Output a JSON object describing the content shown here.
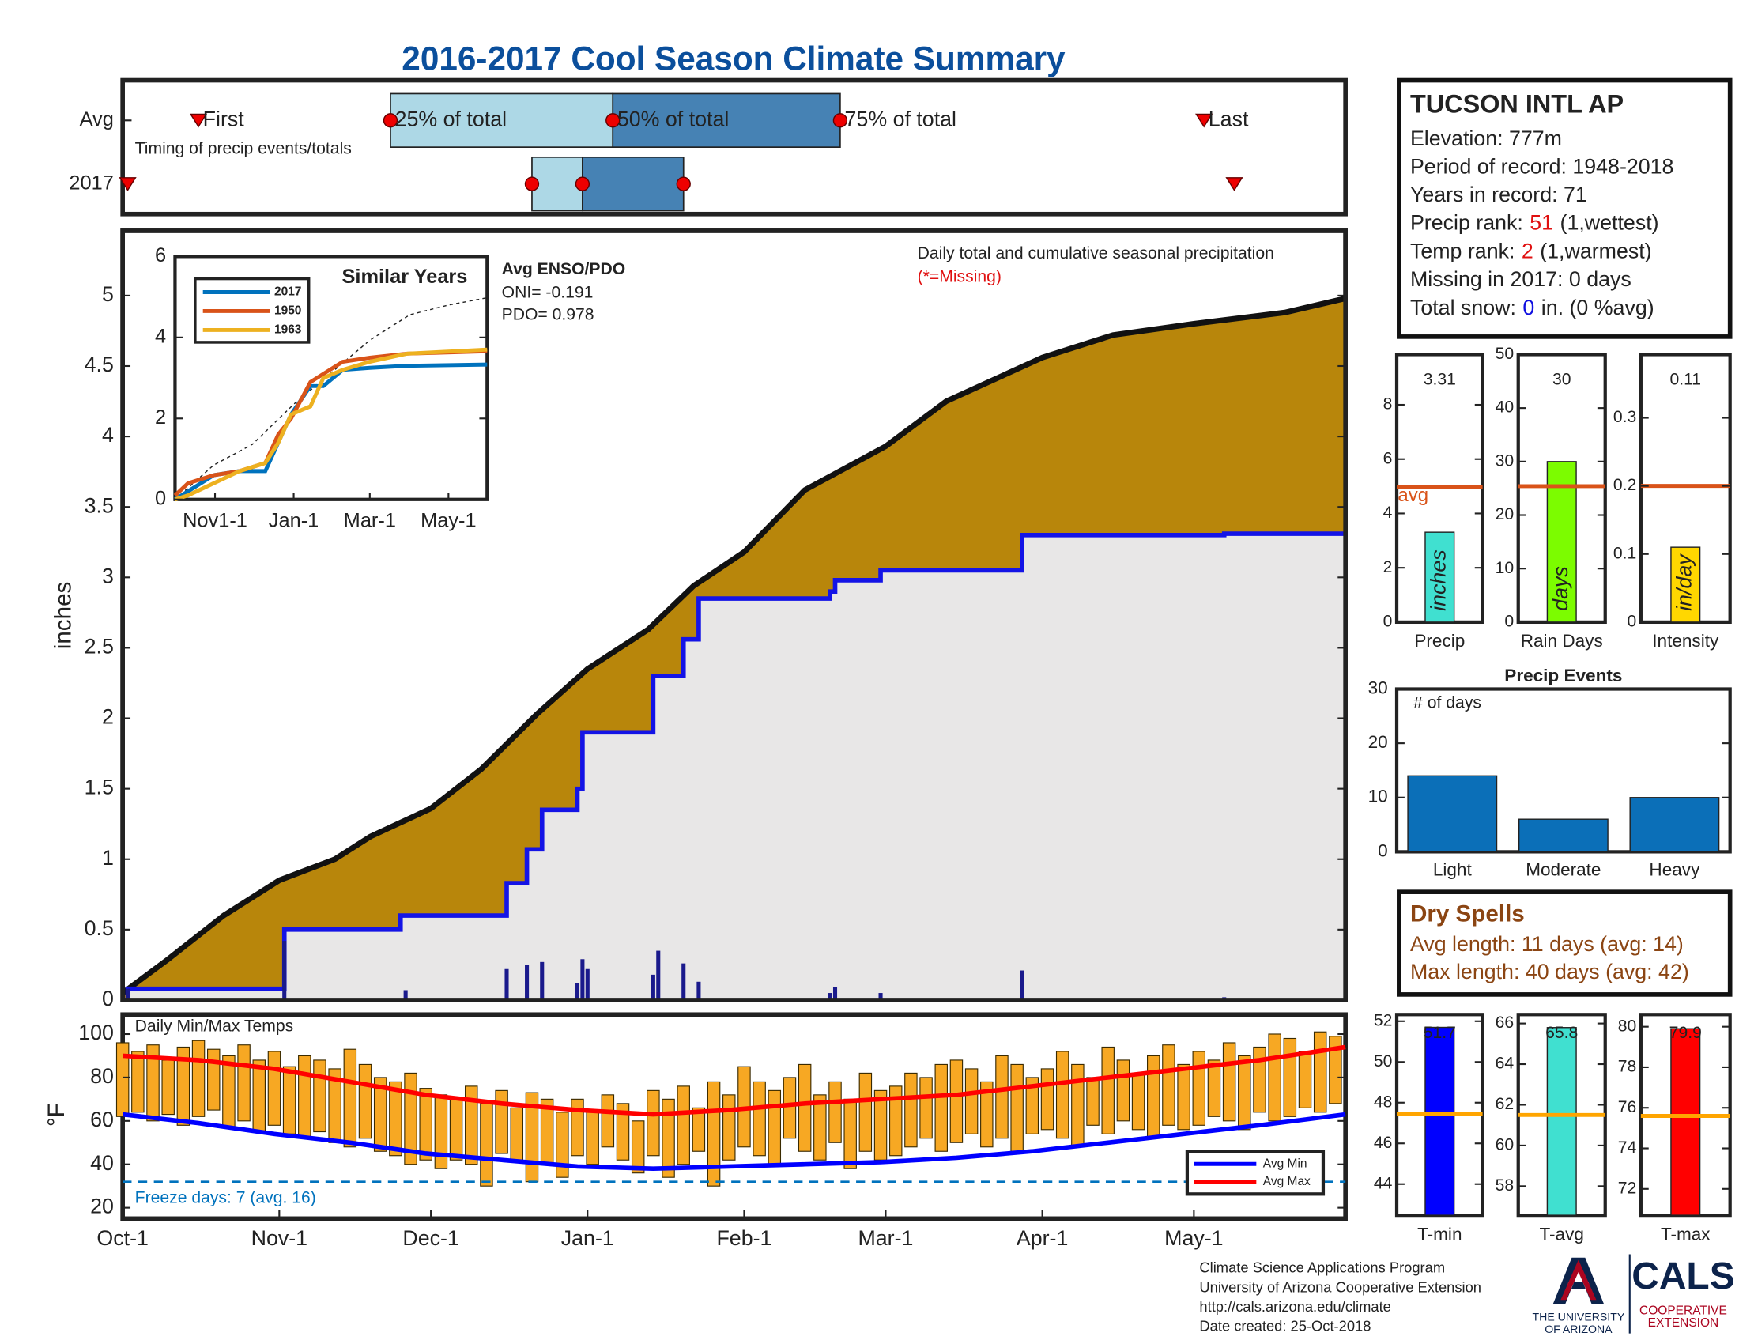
{
  "title": "2016-2017 Cool Season Climate Summary",
  "station": {
    "name": "TUCSON INTL AP",
    "elevation": "Elevation: 777m",
    "period": "Period of record: 1948-2018",
    "years": "Years in record: 71",
    "precip_rank": [
      "Precip rank:",
      "51",
      "(1,wettest)"
    ],
    "temp_rank": [
      "Temp rank:",
      "2",
      "(1,warmest)"
    ],
    "missing": "Missing in 2017: 0 days",
    "snow": [
      "Total snow:",
      "0",
      "in. (0 %avg)"
    ]
  },
  "dry_spells": {
    "title": "Dry Spells",
    "avg": "Avg length: 11 days (avg: 14)",
    "max": "Max length: 40 days (avg: 42)"
  },
  "footer": {
    "lines": [
      "Climate Science Applications Program",
      "University of Arizona Cooperative Extension",
      "http://cals.arizona.edu/climate",
      "Date created: 25-Oct-2018"
    ],
    "logo": [
      "THE UNIVERSITY",
      "OF ARIZONA",
      "CALS",
      "COOPERATIVE",
      "EXTENSION"
    ]
  },
  "chart_data": [
    {
      "type": "timing",
      "note": "Timing of precip events/totals",
      "xlim": [
        0,
        242
      ],
      "colors": [
        "#add8e6",
        "#4682b4"
      ],
      "rows": [
        {
          "name": "Avg",
          "first": 15,
          "p25": 53,
          "p50": 97,
          "p75": 142,
          "last": 214,
          "labels": {
            "first": "First",
            "p25": "25% of total",
            "p50": "50% of total",
            "p75": "75% of total",
            "last": "Last"
          }
        },
        {
          "name": "2017",
          "first": 1,
          "p25": 81,
          "p50": 91,
          "p75": 111,
          "last": 220
        }
      ]
    },
    {
      "type": "area",
      "y_label": "inches",
      "note": "Daily total and cumulative seasonal precipitation",
      "missing_note": "(*=Missing)",
      "xlim": [
        0,
        242
      ],
      "ylim": [
        0,
        5.46
      ],
      "yticks": [
        0,
        0.5,
        1,
        1.5,
        2,
        2.5,
        3,
        3.5,
        4,
        4.5,
        5
      ],
      "average": {
        "color": "#b8860b",
        "x": [
          0,
          9,
          20,
          31,
          42,
          49,
          61,
          71,
          82,
          92,
          104,
          113,
          123,
          135,
          151,
          163,
          182,
          196,
          212,
          230,
          242
        ],
        "values": [
          0.05,
          0.29,
          0.6,
          0.85,
          1.0,
          1.16,
          1.36,
          1.64,
          2.03,
          2.35,
          2.63,
          2.94,
          3.18,
          3.62,
          3.93,
          4.25,
          4.56,
          4.72,
          4.8,
          4.88,
          4.98
        ]
      },
      "series": [
        {
          "color": "#1414e6",
          "x": [
            0,
            1,
            1,
            32,
            32,
            55,
            55,
            76,
            76,
            80,
            80,
            83,
            83,
            90,
            90,
            91,
            91,
            105,
            105,
            111,
            111,
            114,
            114,
            140,
            140,
            141,
            141,
            150,
            150,
            178,
            178,
            218,
            218,
            242
          ],
          "values": [
            0,
            0,
            0.08,
            0.08,
            0.5,
            0.5,
            0.6,
            0.6,
            0.83,
            0.83,
            1.07,
            1.07,
            1.35,
            1.35,
            1.5,
            1.5,
            1.9,
            1.9,
            2.3,
            2.3,
            2.56,
            2.56,
            2.85,
            2.85,
            2.9,
            2.9,
            2.98,
            2.98,
            3.05,
            3.05,
            3.3,
            3.3,
            3.31,
            3.31
          ]
        }
      ],
      "daily": {
        "color": "#1a1a8c",
        "x": [
          1,
          32,
          56,
          76,
          80,
          83,
          90,
          91,
          92,
          105,
          106,
          111,
          114,
          140,
          141,
          150,
          178,
          218
        ],
        "values": [
          0.08,
          0.42,
          0.07,
          0.22,
          0.25,
          0.27,
          0.12,
          0.29,
          0.22,
          0.18,
          0.35,
          0.26,
          0.13,
          0.05,
          0.09,
          0.05,
          0.21,
          0.02
        ]
      }
    },
    {
      "type": "line",
      "title": "Similar Years",
      "xlim": [
        0,
        242
      ],
      "ylim": [
        0,
        6
      ],
      "yticks": [
        0,
        2,
        4,
        6
      ],
      "xticks": [
        {
          "value": 31,
          "label": "Nov1-1"
        },
        {
          "value": 92,
          "label": "Jan-1"
        },
        {
          "value": 151,
          "label": "Mar-1"
        },
        {
          "value": 212,
          "label": "May-1"
        }
      ],
      "x": [
        0,
        10,
        30,
        50,
        70,
        80,
        90,
        105,
        115,
        130,
        151,
        180,
        242
      ],
      "series": [
        {
          "name": "2017",
          "color": "#0072bd",
          "values": [
            0,
            0.2,
            0.6,
            0.7,
            0.7,
            1.4,
            2.1,
            2.8,
            2.8,
            3.2,
            3.25,
            3.3,
            3.33
          ]
        },
        {
          "name": "1950",
          "color": "#d95319",
          "values": [
            0.1,
            0.4,
            0.6,
            0.7,
            0.9,
            1.6,
            2.0,
            2.9,
            3.1,
            3.4,
            3.5,
            3.6,
            3.66
          ]
        },
        {
          "name": "1963",
          "color": "#edb120",
          "values": [
            0,
            0.1,
            0.4,
            0.7,
            0.9,
            1.4,
            2.1,
            2.3,
            3.0,
            3.2,
            3.4,
            3.6,
            3.7
          ]
        }
      ],
      "average": {
        "x": [
          0,
          30,
          60,
          92,
          123,
          151,
          182,
          212,
          242
        ],
        "values": [
          0,
          0.85,
          1.36,
          2.35,
          3.18,
          3.93,
          4.56,
          4.8,
          4.98
        ]
      },
      "enso": {
        "title": "Avg ENSO/PDO",
        "oni": "ONI= -0.191",
        "pdo": "PDO= 0.978"
      }
    },
    {
      "type": "range-bar",
      "title": "Daily Min/Max Temps",
      "y_label": "°F",
      "xlim": [
        0,
        242
      ],
      "ylim": [
        15,
        109
      ],
      "yticks": [
        20,
        40,
        60,
        80,
        100
      ],
      "xticks": [
        {
          "value": 0,
          "label": "Oct-1"
        },
        {
          "value": 31,
          "label": "Nov-1"
        },
        {
          "value": 61,
          "label": "Dec-1"
        },
        {
          "value": 92,
          "label": "Jan-1"
        },
        {
          "value": 123,
          "label": "Feb-1"
        },
        {
          "value": 151,
          "label": "Mar-1"
        },
        {
          "value": 182,
          "label": "Apr-1"
        },
        {
          "value": 212,
          "label": "May-1"
        }
      ],
      "color": "#f7a823",
      "legend": "lower right",
      "x": [
        0,
        3,
        6,
        9,
        12,
        15,
        18,
        21,
        24,
        27,
        30,
        33,
        36,
        39,
        42,
        45,
        48,
        51,
        54,
        57,
        60,
        63,
        66,
        69,
        72,
        75,
        78,
        81,
        84,
        87,
        90,
        93,
        96,
        99,
        102,
        105,
        108,
        111,
        114,
        117,
        120,
        123,
        126,
        129,
        132,
        135,
        138,
        141,
        144,
        147,
        150,
        153,
        156,
        159,
        162,
        165,
        168,
        171,
        174,
        177,
        180,
        183,
        186,
        189,
        192,
        195,
        198,
        201,
        204,
        207,
        210,
        213,
        216,
        219,
        222,
        225,
        228,
        231,
        234,
        237,
        240
      ],
      "max": [
        96,
        92,
        95,
        88,
        94,
        97,
        93,
        90,
        95,
        88,
        92,
        85,
        90,
        88,
        84,
        93,
        86,
        80,
        78,
        82,
        75,
        72,
        70,
        76,
        68,
        74,
        66,
        73,
        70,
        64,
        70,
        65,
        72,
        68,
        60,
        74,
        70,
        76,
        66,
        78,
        72,
        85,
        78,
        74,
        80,
        86,
        72,
        78,
        70,
        82,
        74,
        76,
        82,
        80,
        86,
        88,
        84,
        78,
        90,
        86,
        80,
        84,
        92,
        86,
        80,
        94,
        88,
        82,
        90,
        95,
        86,
        92,
        88,
        96,
        90,
        94,
        100,
        98,
        92,
        101,
        99
      ],
      "min": [
        62,
        64,
        60,
        63,
        58,
        62,
        65,
        57,
        60,
        55,
        58,
        54,
        52,
        55,
        50,
        48,
        52,
        46,
        44,
        40,
        42,
        38,
        42,
        40,
        30,
        45,
        42,
        32,
        40,
        34,
        44,
        40,
        48,
        42,
        36,
        44,
        34,
        40,
        46,
        30,
        42,
        48,
        44,
        40,
        52,
        46,
        42,
        50,
        38,
        46,
        42,
        44,
        48,
        52,
        46,
        50,
        54,
        48,
        52,
        46,
        54,
        56,
        52,
        48,
        58,
        54,
        60,
        56,
        52,
        58,
        56,
        58,
        62,
        60,
        56,
        64,
        60,
        62,
        66,
        64,
        68
      ],
      "series": [
        {
          "name": "Avg Min",
          "color": "#0000ff",
          "x": [
            0,
            15,
            30,
            45,
            60,
            75,
            90,
            105,
            120,
            135,
            150,
            165,
            180,
            195,
            210,
            225,
            242
          ],
          "values": [
            63,
            59,
            54,
            50,
            45,
            42,
            39,
            38,
            39,
            40,
            41,
            43,
            46,
            50,
            54,
            58,
            63
          ]
        },
        {
          "name": "Avg Max",
          "color": "#ff0000",
          "x": [
            0,
            15,
            30,
            45,
            60,
            75,
            90,
            105,
            120,
            135,
            150,
            165,
            180,
            195,
            210,
            225,
            242
          ],
          "values": [
            90,
            88,
            84,
            78,
            72,
            68,
            65,
            63,
            65,
            68,
            70,
            72,
            76,
            80,
            84,
            88,
            94
          ]
        }
      ],
      "freeze": {
        "value": 32,
        "label": "Freeze days: 7 (avg. 16)",
        "color": "#0072bd"
      }
    },
    {
      "type": "bar",
      "label": "Precip",
      "unit": "inches",
      "ylim": [
        0,
        9.85
      ],
      "yticks": [
        0,
        2,
        4,
        6,
        8
      ],
      "value": 3.31,
      "average": 4.96,
      "average_label": "avg",
      "color": "#40e0d0"
    },
    {
      "type": "bar",
      "label": "Rain Days",
      "unit": "days",
      "ylim": [
        0,
        50
      ],
      "yticks": [
        0,
        10,
        20,
        30,
        40,
        50
      ],
      "value": 30,
      "average": 25.4,
      "color": "#7cfc00"
    },
    {
      "type": "bar",
      "label": "Intensity",
      "unit": "in/day",
      "ylim": [
        0,
        0.393
      ],
      "yticks": [
        0,
        0.1,
        0.2,
        0.3
      ],
      "value": 0.11,
      "average": 0.2,
      "color": "#ffd700"
    },
    {
      "type": "bar",
      "title": "Precip Events",
      "y_label": "# of days",
      "categories": [
        "Light",
        "Moderate",
        "Heavy"
      ],
      "values": [
        14,
        6,
        10
      ],
      "ylim": [
        0,
        30
      ],
      "yticks": [
        0,
        10,
        20,
        30
      ],
      "color": "#0b6fb8"
    },
    {
      "type": "bar",
      "label": "T-min",
      "ylim": [
        42.47,
        52.33
      ],
      "yticks": [
        44,
        46,
        48,
        50,
        52
      ],
      "value": 51.7,
      "average": 47.45,
      "color": "#0000ff"
    },
    {
      "type": "bar",
      "label": "T-avg",
      "ylim": [
        56.57,
        66.44
      ],
      "yticks": [
        58,
        60,
        62,
        64,
        66
      ],
      "value": 65.8,
      "average": 61.5,
      "color": "#40e0d0"
    },
    {
      "type": "bar",
      "label": "T-max",
      "ylim": [
        70.7,
        80.6
      ],
      "yticks": [
        72,
        74,
        76,
        78,
        80
      ],
      "value": 79.9,
      "average": 75.6,
      "color": "#ff0000"
    }
  ]
}
